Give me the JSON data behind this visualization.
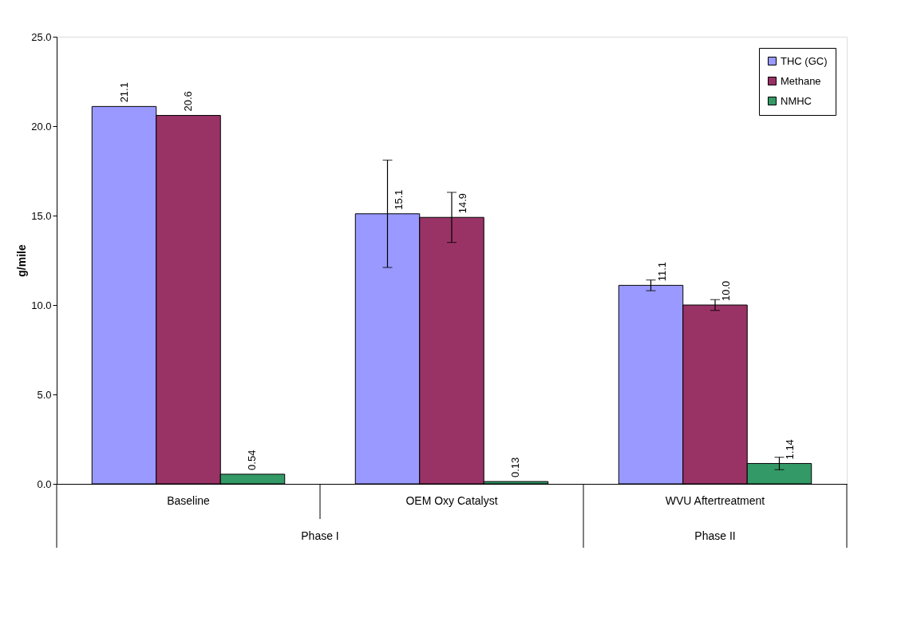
{
  "chart_data": {
    "type": "bar",
    "ylabel": "g/mile",
    "categories": [
      "Baseline",
      "OEM Oxy Catalyst",
      "WVU Aftertreatment"
    ],
    "series": [
      {
        "name": "THC (GC)",
        "color": "#9999ff",
        "values": [
          21.1,
          15.1,
          11.1
        ],
        "errors": [
          null,
          3.0,
          0.3
        ],
        "value_labels": [
          "21.1",
          "15.1",
          "11.1"
        ]
      },
      {
        "name": "Methane",
        "color": "#993366",
        "values": [
          20.6,
          14.9,
          10.0
        ],
        "errors": [
          null,
          1.4,
          0.3
        ],
        "value_labels": [
          "20.6",
          "14.9",
          "10.0"
        ]
      },
      {
        "name": "NMHC",
        "color": "#339966",
        "values": [
          0.54,
          0.13,
          1.14
        ],
        "errors": [
          null,
          null,
          0.35
        ],
        "value_labels": [
          "0.54",
          "0.13",
          "1.14"
        ]
      }
    ],
    "ylim": [
      0,
      25
    ],
    "yticks": [
      {
        "value": 0,
        "label": "0.0"
      },
      {
        "value": 5,
        "label": "5.0"
      },
      {
        "value": 10,
        "label": "10.0"
      },
      {
        "value": 15,
        "label": "15.0"
      },
      {
        "value": 20,
        "label": "20.0"
      },
      {
        "value": 25,
        "label": "25.0"
      }
    ],
    "legend": "top right",
    "grid": false,
    "annotations": [
      "Phase I",
      "Phase II"
    ]
  }
}
